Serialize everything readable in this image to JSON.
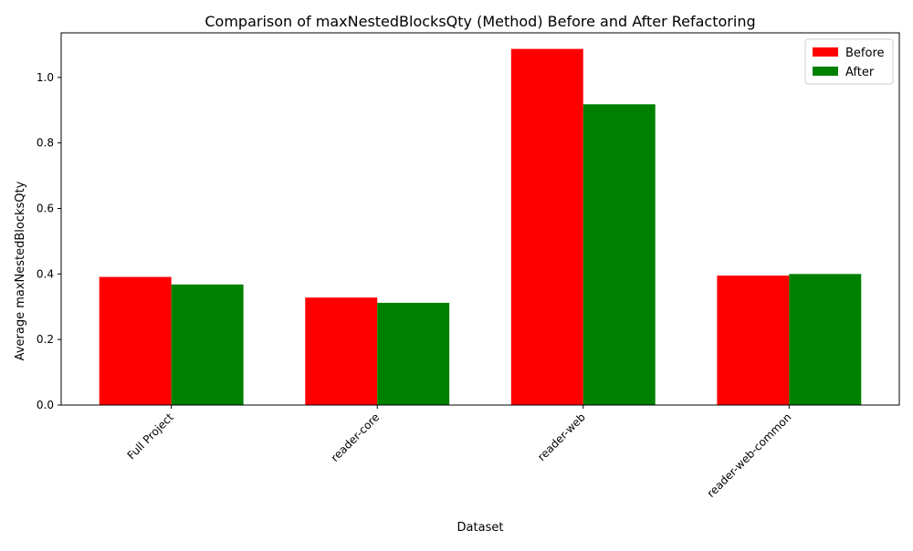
{
  "chart_data": {
    "type": "bar",
    "title": "Comparison of maxNestedBlocksQty (Method) Before and After Refactoring",
    "xlabel": "Dataset",
    "ylabel": "Average maxNestedBlocksQty",
    "categories": [
      "Full Project",
      "reader-core",
      "reader-web",
      "reader-web-common"
    ],
    "series": [
      {
        "name": "Before",
        "color": "#ff0000",
        "values": [
          0.391,
          0.328,
          1.087,
          0.395
        ]
      },
      {
        "name": "After",
        "color": "#008000",
        "values": [
          0.368,
          0.312,
          0.918,
          0.4
        ]
      }
    ],
    "ylim": [
      0,
      1.136
    ],
    "yticks": [
      "0.0",
      "0.2",
      "0.4",
      "0.6",
      "0.8",
      "1.0"
    ],
    "grid": false,
    "legend_position": "top-right"
  }
}
